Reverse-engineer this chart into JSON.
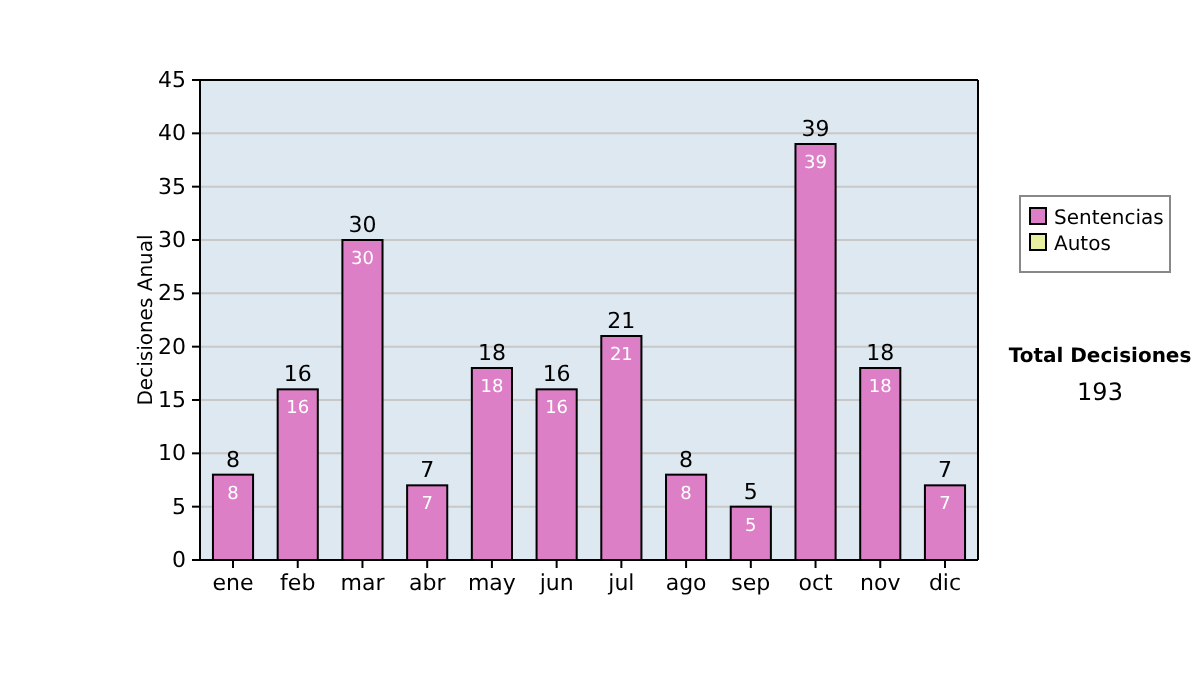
{
  "chart_data": {
    "type": "bar",
    "ylabel": "Decisiones Anual",
    "categories": [
      "ene",
      "feb",
      "mar",
      "abr",
      "may",
      "jun",
      "jul",
      "ago",
      "sep",
      "oct",
      "nov",
      "dic"
    ],
    "series": [
      {
        "name": "Sentencias",
        "color": "#dd7fc6",
        "values": [
          8,
          16,
          30,
          7,
          18,
          16,
          21,
          8,
          5,
          39,
          18,
          7
        ],
        "value_labels": [
          "8",
          "16",
          "30",
          "7",
          "18",
          "16",
          "21",
          "8",
          "5",
          "39",
          "18",
          "7"
        ]
      },
      {
        "name": "Autos",
        "color": "#e6f0a0",
        "values": [
          0,
          0,
          0,
          0,
          0,
          0,
          0,
          0,
          0,
          0,
          0,
          0
        ]
      }
    ],
    "stacked": true,
    "totals": [
      "8",
      "16",
      "30",
      "7",
      "18",
      "16",
      "21",
      "8",
      "5",
      "39",
      "18",
      "7"
    ],
    "ylim": [
      0,
      45
    ],
    "yticks": [
      0,
      5,
      10,
      15,
      20,
      25,
      30,
      35,
      40,
      45
    ],
    "grid": "y",
    "legend": "right",
    "annotations": [
      "Total Decisiones",
      "193"
    ]
  }
}
